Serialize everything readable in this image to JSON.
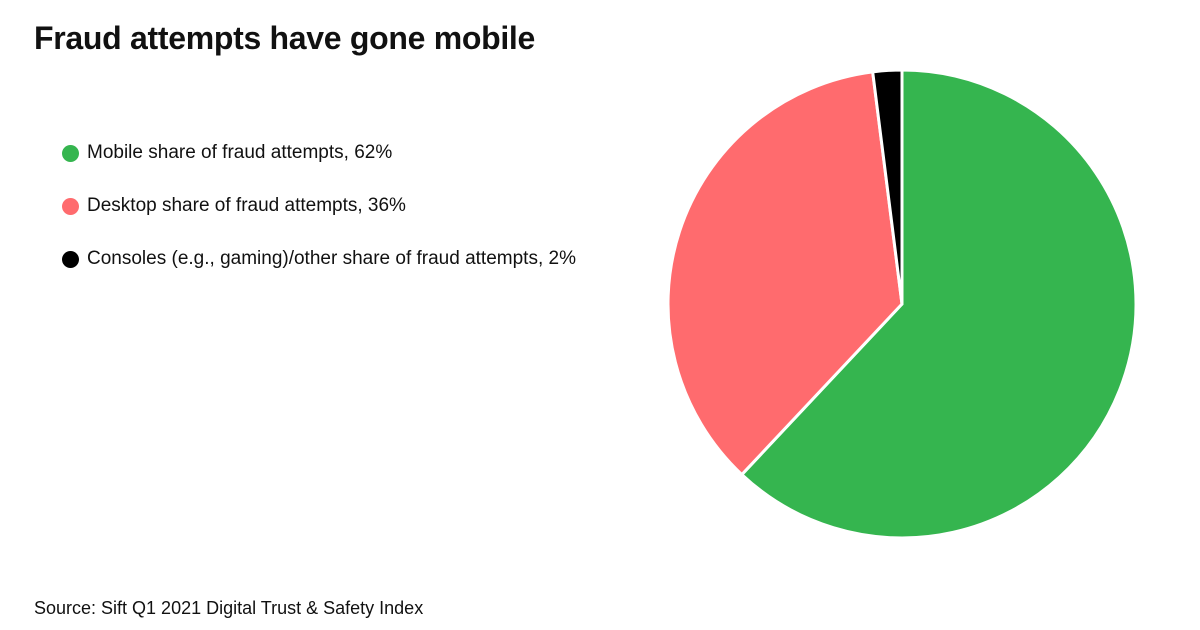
{
  "title": "Fraud attempts have gone mobile",
  "source": "Source: Sift Q1 2021 Digital Trust & Safety Index",
  "chart_data": {
    "type": "pie",
    "categories": [
      "Mobile share of fraud attempts, 62%",
      "Desktop share of fraud attempts, 36%",
      "Consoles (e.g., gaming)/other share of fraud attempts, 2%"
    ],
    "values": [
      62,
      36,
      2
    ],
    "colors": [
      "#35b54f",
      "#ff6b6e",
      "#000000"
    ],
    "legend_position": "left"
  }
}
